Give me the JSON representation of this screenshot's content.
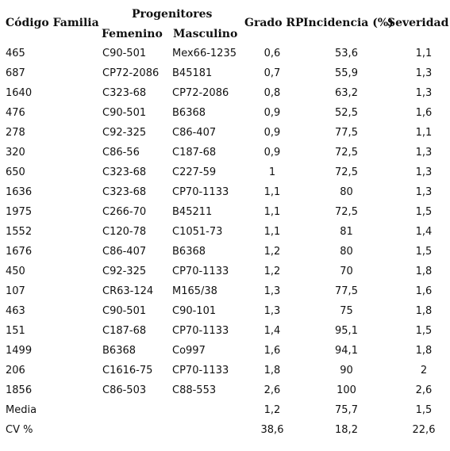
{
  "header": {
    "codigo": "Código Familia",
    "progenitores": "Progenitores",
    "femenino": "Femenino",
    "masculino": "Masculino",
    "grado": "Grado RP",
    "incidencia": "Incidencia (%)",
    "severidad": "Severidad"
  },
  "rows": [
    [
      "465",
      "C90-501",
      "Mex66-1235",
      "0,6",
      "53,6",
      "1,1"
    ],
    [
      "687",
      "CP72-2086",
      "B45181",
      "0,7",
      "55,9",
      "1,3"
    ],
    [
      "1640",
      "C323-68",
      "CP72-2086",
      "0,8",
      "63,2",
      "1,3"
    ],
    [
      "476",
      "C90-501",
      "B6368",
      "0,9",
      "52,5",
      "1,6"
    ],
    [
      "278",
      "C92-325",
      "C86-407",
      "0,9",
      "77,5",
      "1,1"
    ],
    [
      "320",
      "C86-56",
      "C187-68",
      "0,9",
      "72,5",
      "1,3"
    ],
    [
      "650",
      "C323-68",
      "C227-59",
      "1",
      "72,5",
      "1,3"
    ],
    [
      "1636",
      "C323-68",
      "CP70-1133",
      "1,1",
      "80",
      "1,3"
    ],
    [
      "1975",
      "C266-70",
      "B45211",
      "1,1",
      "72,5",
      "1,5"
    ],
    [
      "1552",
      "C120-78",
      "C1051-73",
      "1,1",
      "81",
      "1,4"
    ],
    [
      "1676",
      "C86-407",
      "B6368",
      "1,2",
      "80",
      "1,5"
    ],
    [
      "450",
      "C92-325",
      "CP70-1133",
      "1,2",
      "70",
      "1,8"
    ],
    [
      "107",
      "CR63-124",
      "M165/38",
      "1,3",
      "77,5",
      "1,6"
    ],
    [
      "463",
      "C90-501",
      "C90-101",
      "1,3",
      "75",
      "1,8"
    ],
    [
      "151",
      "C187-68",
      "CP70-1133",
      "1,4",
      "95,1",
      "1,5"
    ],
    [
      "1499",
      "B6368",
      "Co997",
      "1,6",
      "94,1",
      "1,8"
    ],
    [
      "206",
      "C1616-75",
      "CP70-1133",
      "1,8",
      "90",
      "2"
    ],
    [
      "1856",
      "C86-503",
      "C88-553",
      "2,6",
      "100",
      "2,6"
    ],
    [
      "Media",
      "",
      "",
      "1,2",
      "75,7",
      "1,5"
    ],
    [
      "CV %",
      "",
      "",
      "38,6",
      "18,2",
      "22,6"
    ]
  ]
}
